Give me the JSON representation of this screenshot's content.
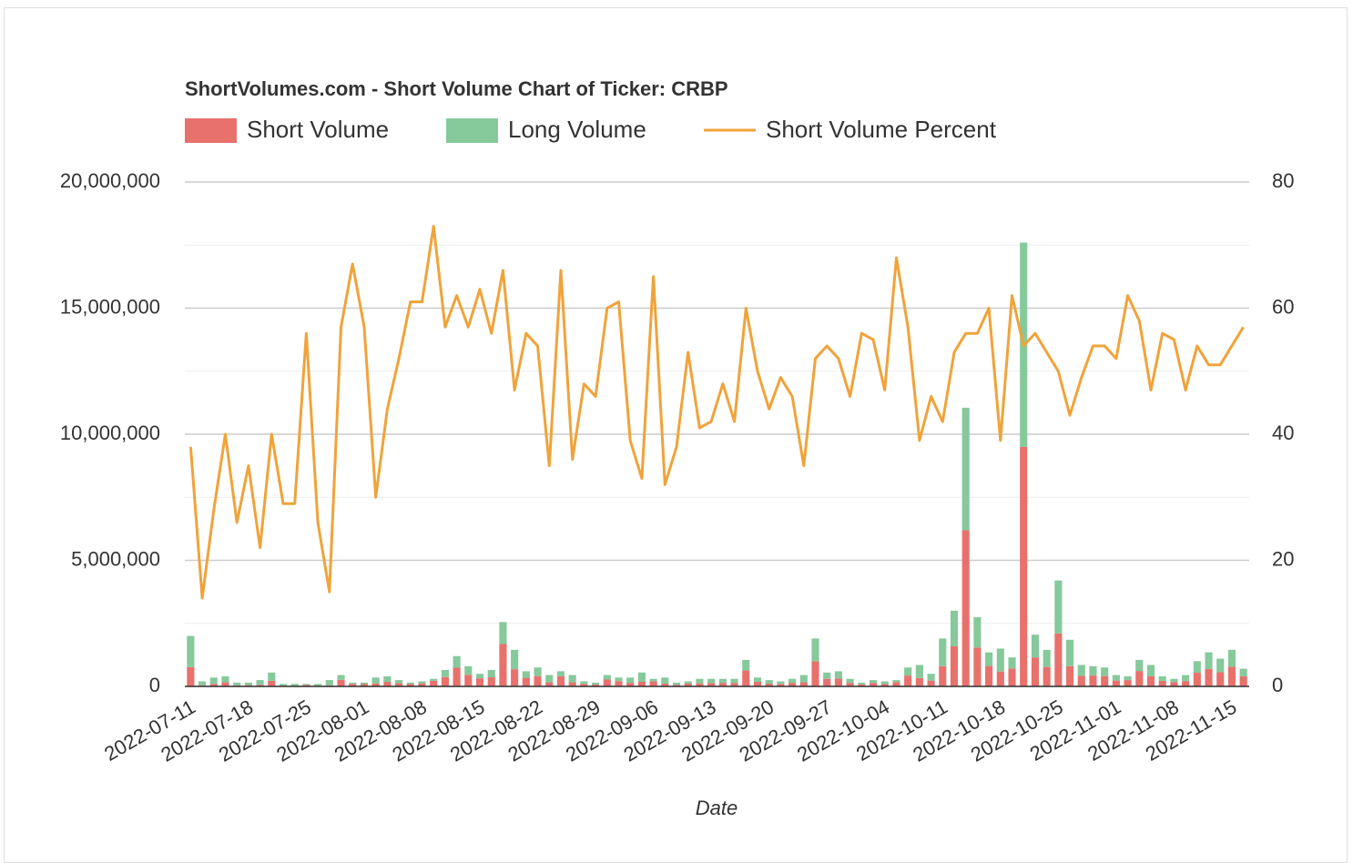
{
  "chart_data": {
    "type": "bar",
    "title": "ShortVolumes.com - Short Volume Chart of Ticker: CRBP",
    "xlabel": "Date",
    "categories": [
      "2022-07-11",
      null,
      null,
      null,
      null,
      "2022-07-18",
      null,
      null,
      null,
      null,
      "2022-07-25",
      null,
      null,
      null,
      null,
      "2022-08-01",
      null,
      null,
      null,
      null,
      "2022-08-08",
      null,
      null,
      null,
      null,
      "2022-08-15",
      null,
      null,
      null,
      null,
      "2022-08-22",
      null,
      null,
      null,
      null,
      "2022-08-29",
      null,
      null,
      null,
      null,
      "2022-09-06",
      null,
      null,
      null,
      null,
      "2022-09-13",
      null,
      null,
      null,
      null,
      "2022-09-20",
      null,
      null,
      null,
      null,
      "2022-09-27",
      null,
      null,
      null,
      null,
      "2022-10-04",
      null,
      null,
      null,
      null,
      "2022-10-11",
      null,
      null,
      null,
      null,
      "2022-10-18",
      null,
      null,
      null,
      null,
      "2022-10-25",
      null,
      null,
      null,
      null,
      "2022-11-01",
      null,
      null,
      null,
      null,
      "2022-11-08",
      null,
      null,
      null,
      null,
      "2022-11-15",
      null
    ],
    "series": [
      {
        "name": "Short Volume",
        "color": "#e8716c",
        "stack": "volume",
        "values": [
          760000,
          30000,
          100000,
          160000,
          40000,
          50000,
          60000,
          220000,
          30000,
          30000,
          60000,
          30000,
          40000,
          260000,
          100000,
          90000,
          110000,
          180000,
          130000,
          90000,
          120000,
          220000,
          370000,
          740000,
          460000,
          320000,
          360000,
          1680000,
          680000,
          340000,
          410000,
          160000,
          400000,
          160000,
          100000,
          70000,
          270000,
          210000,
          140000,
          180000,
          200000,
          110000,
          60000,
          110000,
          120000,
          130000,
          140000,
          130000,
          630000,
          180000,
          110000,
          100000,
          140000,
          160000,
          990000,
          300000,
          310000,
          140000,
          80000,
          140000,
          90000,
          170000,
          430000,
          330000,
          230000,
          800000,
          1590000,
          6190000,
          1540000,
          810000,
          590000,
          710000,
          9500000,
          1150000,
          770000,
          2100000,
          800000,
          420000,
          430000,
          410000,
          230000,
          250000,
          610000,
          400000,
          220000,
          170000,
          210000,
          540000,
          690000,
          560000,
          780000,
          400000
        ]
      },
      {
        "name": "Long Volume",
        "color": "#86c99b",
        "stack": "volume",
        "values": [
          1240000,
          170000,
          250000,
          240000,
          110000,
          100000,
          190000,
          330000,
          70000,
          70000,
          40000,
          70000,
          210000,
          190000,
          50000,
          60000,
          240000,
          220000,
          120000,
          60000,
          80000,
          80000,
          280000,
          460000,
          340000,
          180000,
          290000,
          870000,
          770000,
          260000,
          340000,
          290000,
          200000,
          290000,
          100000,
          80000,
          180000,
          140000,
          210000,
          370000,
          100000,
          240000,
          90000,
          90000,
          180000,
          170000,
          160000,
          170000,
          420000,
          170000,
          140000,
          100000,
          160000,
          290000,
          910000,
          250000,
          290000,
          160000,
          70000,
          110000,
          110000,
          80000,
          320000,
          520000,
          270000,
          1100000,
          1410000,
          4860000,
          1210000,
          540000,
          910000,
          440000,
          8100000,
          900000,
          680000,
          2100000,
          1050000,
          430000,
          370000,
          340000,
          220000,
          150000,
          440000,
          450000,
          180000,
          130000,
          240000,
          460000,
          660000,
          540000,
          670000,
          300000
        ]
      },
      {
        "name": "Short Volume Percent",
        "color": "#f0a33a",
        "type": "line",
        "axis": "y2",
        "values": [
          38,
          14,
          28,
          40,
          26,
          35,
          22,
          40,
          29,
          29,
          56,
          26,
          15,
          57,
          67,
          57,
          30,
          44,
          52,
          61,
          61,
          73,
          57,
          62,
          57,
          63,
          56,
          66,
          47,
          56,
          54,
          35,
          66,
          36,
          48,
          46,
          60,
          61,
          39,
          33,
          65,
          32,
          38,
          53,
          41,
          42,
          48,
          42,
          60,
          50,
          44,
          49,
          46,
          35,
          52,
          54,
          52,
          46,
          56,
          55,
          47,
          68,
          57,
          39,
          46,
          42,
          53,
          56,
          56,
          60,
          39,
          62,
          54,
          56,
          53,
          50,
          43,
          49,
          54,
          54,
          52,
          62,
          58,
          47,
          56,
          55,
          47,
          54,
          51,
          51,
          54,
          57
        ]
      }
    ],
    "ylim": [
      0,
      20000000
    ],
    "yticks": [
      0,
      {
        "value": 5000000,
        "label": "5,000,000"
      },
      {
        "value": 10000000,
        "label": "10,000,000"
      },
      {
        "value": 15000000,
        "label": "15,000,000"
      },
      {
        "value": 20000000,
        "label": "20,000,000"
      }
    ],
    "y2lim": [
      0,
      80
    ],
    "y2ticks": [
      0,
      20,
      40,
      60,
      80
    ],
    "grid": true,
    "legend": "top-left"
  }
}
